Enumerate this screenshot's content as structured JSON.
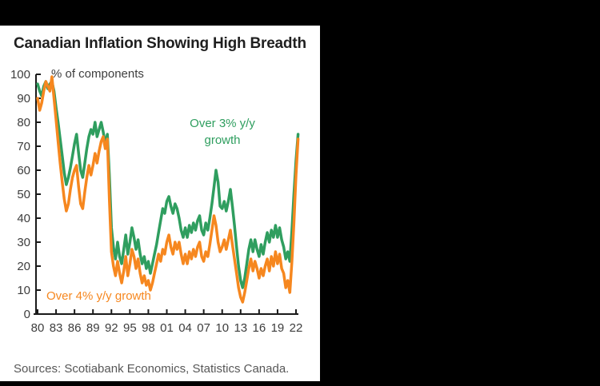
{
  "title": "Canadian Inflation Showing High Breadth",
  "source": "Sources: Scotiabank Economics, Statistics Canada.",
  "colors": {
    "background": "#000000",
    "panel": "#ffffff",
    "axis": "#1a1a1a",
    "green_series": "#2f9e5f",
    "orange_series": "#f6871f"
  },
  "chart_data": {
    "type": "line",
    "title": "Canadian Inflation Showing High Breadth",
    "ylabel": "% of components",
    "xlabel": "",
    "ylim": [
      0,
      100
    ],
    "y_ticks": [
      0,
      10,
      20,
      30,
      40,
      50,
      60,
      70,
      80,
      90,
      100
    ],
    "xlim": [
      1980,
      2022.6
    ],
    "x_tick_labels": [
      "80",
      "83",
      "86",
      "89",
      "92",
      "95",
      "98",
      "01",
      "04",
      "07",
      "10",
      "13",
      "16",
      "19",
      "22"
    ],
    "x_tick_years": [
      1980,
      1983,
      1986,
      1989,
      1992,
      1995,
      1998,
      2001,
      2004,
      2007,
      2010,
      2013,
      2016,
      2019,
      2022
    ],
    "grid": false,
    "legend_position": "inline-annotations",
    "legend": {
      "green": {
        "label": "Over 3% y/y growth",
        "line1": "Over 3% y/y",
        "line2": "growth",
        "color": "#2f9e5f"
      },
      "orange": {
        "label": "Over 4% y/y growth",
        "color": "#f6871f"
      }
    },
    "x_start": 1980.0,
    "x_step": 0.33333,
    "series": [
      {
        "name": "Over 3% y/y growth",
        "color": "#2f9e5f",
        "values": [
          96,
          93,
          91,
          95,
          97,
          94,
          96,
          97,
          93,
          86,
          80,
          73,
          66,
          59,
          54,
          57,
          61,
          66,
          71,
          75,
          67,
          60,
          57,
          63,
          69,
          74,
          77,
          75,
          80,
          74,
          77,
          80,
          76,
          71,
          75,
          58,
          36,
          28,
          23,
          30,
          24,
          21,
          27,
          33,
          25,
          30,
          36,
          32,
          27,
          31,
          25,
          21,
          24,
          19,
          22,
          17,
          21,
          25,
          29,
          34,
          39,
          44,
          42,
          47,
          49,
          45,
          42,
          46,
          44,
          40,
          35,
          32,
          36,
          32,
          37,
          34,
          38,
          35,
          39,
          41,
          35,
          33,
          38,
          35,
          40,
          46,
          53,
          60,
          55,
          45,
          44,
          47,
          43,
          47,
          52,
          45,
          37,
          28,
          20,
          14,
          11,
          15,
          21,
          27,
          31,
          26,
          31,
          27,
          24,
          29,
          25,
          30,
          34,
          30,
          35,
          32,
          37,
          32,
          36,
          31,
          28,
          23,
          26,
          22,
          35,
          50,
          64,
          75
        ]
      },
      {
        "name": "Over 4% y/y growth",
        "color": "#f6871f",
        "values": [
          90,
          85,
          88,
          93,
          97,
          95,
          93,
          99,
          90,
          81,
          72,
          63,
          55,
          48,
          43,
          46,
          52,
          57,
          60,
          62,
          53,
          46,
          44,
          51,
          57,
          62,
          58,
          62,
          67,
          63,
          68,
          72,
          74,
          69,
          73,
          48,
          26,
          20,
          16,
          22,
          17,
          13,
          18,
          24,
          16,
          21,
          27,
          24,
          19,
          23,
          17,
          13,
          16,
          12,
          14,
          10,
          13,
          17,
          21,
          25,
          22,
          27,
          25,
          30,
          33,
          28,
          25,
          30,
          27,
          30,
          25,
          21,
          25,
          21,
          26,
          23,
          27,
          24,
          28,
          30,
          24,
          22,
          26,
          24,
          29,
          35,
          41,
          37,
          30,
          26,
          28,
          31,
          27,
          31,
          35,
          29,
          23,
          17,
          11,
          7,
          5,
          9,
          14,
          19,
          23,
          18,
          22,
          19,
          15,
          19,
          16,
          20,
          23,
          18,
          24,
          20,
          26,
          21,
          25,
          19,
          17,
          11,
          14,
          9,
          22,
          38,
          58,
          73
        ]
      }
    ]
  }
}
